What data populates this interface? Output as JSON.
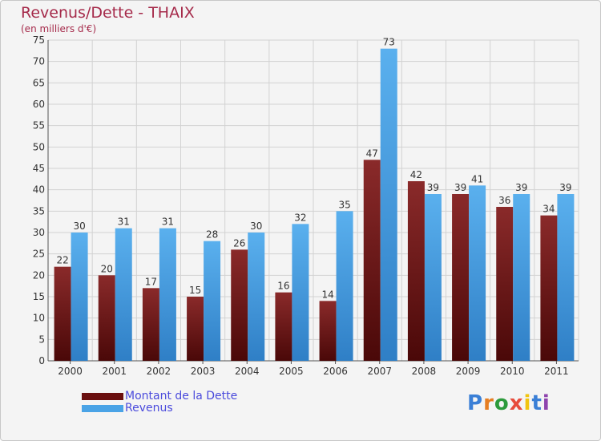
{
  "header": {
    "title": "Revenus/Dette - THAIX",
    "subtitle": "(en milliers d'€)"
  },
  "legend": {
    "items": [
      {
        "label": "Montant de la Dette",
        "color": "#7a1a1a"
      },
      {
        "label": "Revenus",
        "color": "#4aa3e6"
      }
    ]
  },
  "logo": {
    "letters": [
      "P",
      "r",
      "o",
      "x",
      "i",
      "t",
      "i"
    ],
    "colors": [
      "#3a7fd6",
      "#e67e22",
      "#2c9a3b",
      "#e74c3c",
      "#f1c40f",
      "#3a7fd6",
      "#8e44ad"
    ]
  },
  "chart_data": {
    "type": "bar",
    "categories": [
      "2000",
      "2001",
      "2002",
      "2003",
      "2004",
      "2005",
      "2006",
      "2007",
      "2008",
      "2009",
      "2010",
      "2011"
    ],
    "series": [
      {
        "name": "Montant de la Dette",
        "values": [
          22,
          20,
          17,
          15,
          26,
          16,
          14,
          47,
          42,
          39,
          36,
          34
        ],
        "color": "#7a1a1a"
      },
      {
        "name": "Revenus",
        "values": [
          30,
          31,
          31,
          28,
          30,
          32,
          35,
          73,
          39,
          41,
          39,
          39
        ],
        "color": "#4aa3e6"
      }
    ],
    "title": "Revenus/Dette - THAIX",
    "subtitle": "(en milliers d'€)",
    "ylim": [
      0,
      75
    ],
    "yticks": [
      0,
      5,
      10,
      15,
      20,
      25,
      30,
      35,
      40,
      45,
      50,
      55,
      60,
      65,
      70,
      75
    ],
    "grid": true,
    "legend_position": "bottom-left"
  }
}
